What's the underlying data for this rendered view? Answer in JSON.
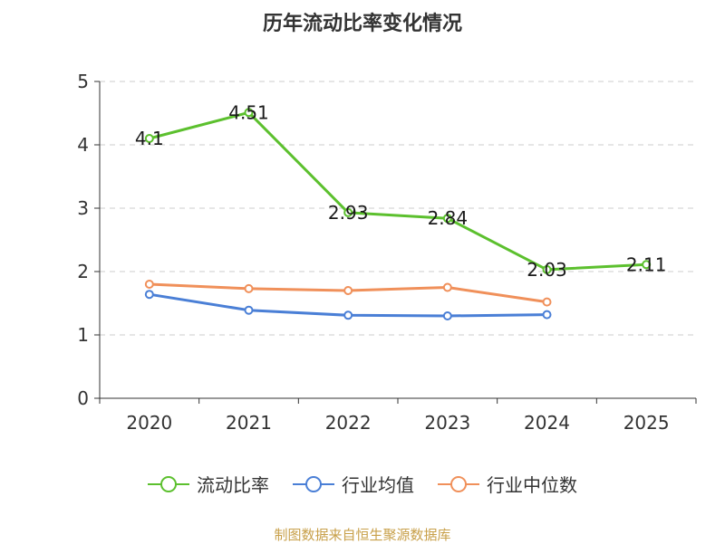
{
  "chart_data": {
    "type": "line",
    "title": "历年流动比率变化情况",
    "categories": [
      "2020",
      "2021",
      "2022",
      "2023",
      "2024",
      "2025"
    ],
    "ylim": [
      0,
      5
    ],
    "yticks": [
      0,
      1,
      2,
      3,
      4,
      5
    ],
    "grid": true,
    "legend_position": "bottom",
    "series": [
      {
        "name": "流动比率",
        "color": "#5cc02e",
        "values": [
          4.1,
          4.51,
          2.93,
          2.84,
          2.03,
          2.11
        ],
        "labels": [
          "4.1",
          "4.51",
          "2.93",
          "2.84",
          "2.03",
          "2.11"
        ],
        "show_labels": true
      },
      {
        "name": "行业均值",
        "color": "#4a7fd6",
        "values": [
          1.64,
          1.39,
          1.31,
          1.3,
          1.32,
          null
        ],
        "show_labels": false
      },
      {
        "name": "行业中位数",
        "color": "#f0905a",
        "values": [
          1.8,
          1.73,
          1.7,
          1.75,
          1.52,
          null
        ],
        "show_labels": false
      }
    ]
  },
  "source": "制图数据来自恒生聚源数据库"
}
